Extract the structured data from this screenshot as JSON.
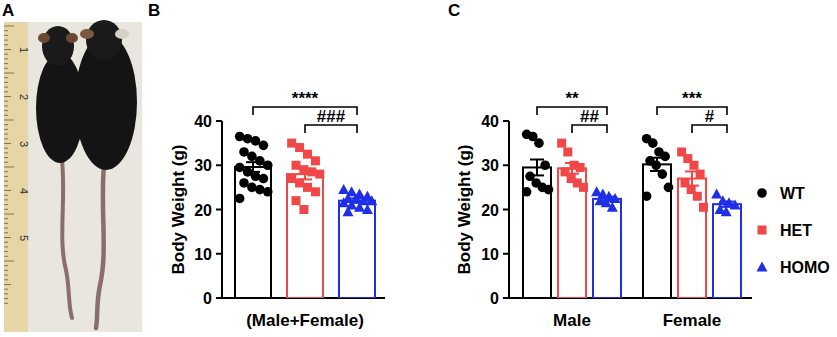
{
  "photo": {
    "panel": "A",
    "ruler_labels": [
      "1",
      "2",
      "3",
      "4",
      "5"
    ]
  },
  "chart_data": [
    {
      "type": "bar",
      "panel": "B",
      "y_label": "Body Weight (g)",
      "categories": [
        "(Male+Female)"
      ],
      "ylim": [
        0,
        40
      ],
      "yticks": [
        0,
        10,
        20,
        30,
        40
      ],
      "series": [
        {
          "color": "#000000",
          "marker": "circle",
          "values": [
            29.6
          ],
          "error": [
            1.1
          ],
          "points": [
            [
              36.5,
              36,
              35.5,
              34.5,
              33,
              32,
              31,
              30,
              29.5,
              28.5,
              27.5,
              27,
              26,
              25,
              24.5,
              24,
              22.5
            ]
          ]
        },
        {
          "color": "#f04848",
          "marker": "square",
          "values": [
            28.0
          ],
          "error": [
            1.2
          ],
          "points": [
            [
              35,
              34,
              32.5,
              31,
              30,
              29,
              28.5,
              28,
              27,
              26,
              25,
              24,
              22,
              20
            ]
          ]
        },
        {
          "color": "#1f2fe6",
          "marker": "triangle",
          "values": [
            22.0
          ],
          "error": [
            0.5
          ],
          "points": [
            [
              24.5,
              24,
              23.5,
              23,
              22.5,
              22.5,
              22,
              22,
              21.5,
              21,
              20.5,
              20,
              19.5
            ]
          ]
        }
      ],
      "annotations": [
        {
          "text": "****",
          "category": 0,
          "from": 0,
          "to": 2
        },
        {
          "text": "###",
          "category": 0,
          "from": 1,
          "to": 2
        }
      ]
    },
    {
      "type": "bar",
      "panel": "C",
      "y_label": "Body Weight (g)",
      "categories": [
        "Male",
        "Female"
      ],
      "ylim": [
        0,
        40
      ],
      "yticks": [
        0,
        10,
        20,
        30,
        40
      ],
      "legend": "right",
      "series": [
        {
          "name": "WT",
          "color": "#000000",
          "marker": "circle",
          "values": [
            29.5,
            30.2
          ],
          "error": [
            1.8,
            1.5
          ],
          "points": [
            [
              37,
              36.5,
              35,
              30,
              27.5,
              26,
              25,
              24.5,
              24
            ],
            [
              36,
              35,
              33,
              32,
              31,
              30,
              28,
              25,
              23
            ]
          ]
        },
        {
          "name": "HET",
          "color": "#f04848",
          "marker": "square",
          "values": [
            29.3,
            27.0
          ],
          "error": [
            1.2,
            1.6
          ],
          "points": [
            [
              35,
              33,
              30,
              29.5,
              28.5,
              27,
              26,
              25
            ],
            [
              33,
              31.5,
              30,
              28,
              26,
              24.5,
              23,
              20.5
            ]
          ]
        },
        {
          "name": "HOMO",
          "color": "#1f2fe6",
          "marker": "triangle",
          "values": [
            22.4,
            21.2
          ],
          "error": [
            0.5,
            0.6
          ],
          "points": [
            [
              24,
              23.5,
              23,
              22.5,
              22,
              21.5,
              20.5
            ],
            [
              23.5,
              22,
              21.5,
              21,
              20,
              19.5
            ]
          ]
        }
      ],
      "annotations": [
        {
          "text": "**",
          "category": 0,
          "from": 0,
          "to": 2
        },
        {
          "text": "##",
          "category": 0,
          "from": 1,
          "to": 2
        },
        {
          "text": "***",
          "category": 1,
          "from": 0,
          "to": 2
        },
        {
          "text": "#",
          "category": 1,
          "from": 1,
          "to": 2
        }
      ]
    }
  ]
}
